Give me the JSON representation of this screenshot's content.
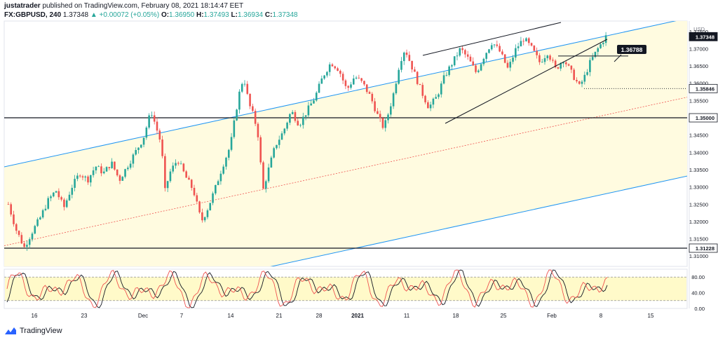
{
  "header": {
    "author": "justatrader",
    "published_text": "published on TradingView.com, February 08, 2021 18:14:47 EET",
    "symbol": "FX:GBPUSD, 240",
    "last": "1.37348",
    "change": "▲ +0.00072 (+0.05%)",
    "o_label": "O:",
    "o": "1.36950",
    "h_label": "H:",
    "h": "1.37493",
    "l_label": "L:",
    "l": "1.36934",
    "c_label": "C:",
    "c": "1.37348"
  },
  "footer": {
    "logo_text": "TradingView"
  },
  "colors": {
    "channel": "#2196f3",
    "channel_fill": "#fffbe0",
    "up_candle": "#26a69a",
    "down_candle": "#ef5350",
    "midline": "#ef5350",
    "stoch_k": "#ef5350",
    "stoch_d": "#131722",
    "stoch_band": "#fff59d"
  },
  "chart_data": {
    "type": "candlestick",
    "currency": "USD",
    "ylim": [
      1.307,
      1.378
    ],
    "y_ticks": [
      "1.37500",
      "1.37000",
      "1.36500",
      "1.36000",
      "1.35500",
      "1.35000",
      "1.34500",
      "1.34000",
      "1.33500",
      "1.33000",
      "1.32500",
      "1.32000",
      "1.31500",
      "1.31000"
    ],
    "x_tick_labels": [
      "16",
      "23",
      "Dec",
      "7",
      "14",
      "21",
      "28",
      "2021",
      "11",
      "18",
      "25",
      "Feb",
      "8",
      "15"
    ],
    "price_badges": [
      {
        "label": "1.37348",
        "value": 1.37348,
        "style": "dark"
      },
      {
        "label": "1.35846",
        "value": 1.35846,
        "style": "light"
      },
      {
        "label": "1.35000",
        "value": 1.35,
        "style": "light"
      },
      {
        "label": "1.31228",
        "value": 1.31228,
        "style": "light"
      }
    ],
    "callout": {
      "label": "1.36788",
      "value": 1.36788
    },
    "horizontal_levels": [
      1.35,
      1.31228
    ],
    "dotted_level": 1.35846,
    "price_path": [
      [
        0,
        1.325
      ],
      [
        6,
        1.3175
      ],
      [
        12,
        1.3125
      ],
      [
        18,
        1.317
      ],
      [
        24,
        1.321
      ],
      [
        30,
        1.326
      ],
      [
        36,
        1.329
      ],
      [
        42,
        1.324
      ],
      [
        48,
        1.33
      ],
      [
        54,
        1.334
      ],
      [
        60,
        1.332
      ],
      [
        66,
        1.336
      ],
      [
        72,
        1.334
      ],
      [
        78,
        1.337
      ],
      [
        84,
        1.332
      ],
      [
        90,
        1.336
      ],
      [
        96,
        1.34
      ],
      [
        102,
        1.344
      ],
      [
        108,
        1.352
      ],
      [
        112,
        1.347
      ],
      [
        116,
        1.342
      ],
      [
        118,
        1.328
      ],
      [
        122,
        1.334
      ],
      [
        128,
        1.338
      ],
      [
        134,
        1.333
      ],
      [
        140,
        1.329
      ],
      [
        146,
        1.32
      ],
      [
        150,
        1.323
      ],
      [
        156,
        1.329
      ],
      [
        162,
        1.336
      ],
      [
        168,
        1.342
      ],
      [
        174,
        1.356
      ],
      [
        178,
        1.362
      ],
      [
        182,
        1.354
      ],
      [
        186,
        1.35
      ],
      [
        190,
        1.343
      ],
      [
        192,
        1.328
      ],
      [
        196,
        1.334
      ],
      [
        202,
        1.342
      ],
      [
        208,
        1.346
      ],
      [
        214,
        1.352
      ],
      [
        220,
        1.348
      ],
      [
        226,
        1.352
      ],
      [
        232,
        1.356
      ],
      [
        238,
        1.362
      ],
      [
        244,
        1.366
      ],
      [
        250,
        1.364
      ],
      [
        256,
        1.358
      ],
      [
        262,
        1.362
      ],
      [
        268,
        1.36
      ],
      [
        274,
        1.356
      ],
      [
        280,
        1.35
      ],
      [
        284,
        1.347
      ],
      [
        288,
        1.352
      ],
      [
        292,
        1.358
      ],
      [
        296,
        1.366
      ],
      [
        300,
        1.37
      ],
      [
        306,
        1.364
      ],
      [
        312,
        1.358
      ],
      [
        318,
        1.353
      ],
      [
        324,
        1.356
      ],
      [
        330,
        1.362
      ],
      [
        336,
        1.366
      ],
      [
        342,
        1.37
      ],
      [
        348,
        1.367
      ],
      [
        354,
        1.363
      ],
      [
        360,
        1.368
      ],
      [
        366,
        1.372
      ],
      [
        372,
        1.369
      ],
      [
        378,
        1.364
      ],
      [
        384,
        1.37
      ],
      [
        390,
        1.373
      ],
      [
        396,
        1.37
      ],
      [
        402,
        1.366
      ],
      [
        408,
        1.369
      ],
      [
        414,
        1.364
      ],
      [
        420,
        1.367
      ],
      [
        426,
        1.363
      ],
      [
        432,
        1.359
      ],
      [
        436,
        1.362
      ],
      [
        440,
        1.366
      ],
      [
        446,
        1.37
      ],
      [
        452,
        1.3735
      ]
    ],
    "stochastic": {
      "range": [
        0,
        100
      ],
      "band": [
        20,
        80
      ],
      "ticks": [
        "80.00",
        "40.00",
        "0.00"
      ]
    }
  }
}
